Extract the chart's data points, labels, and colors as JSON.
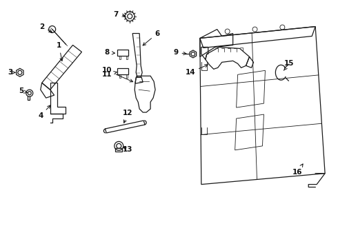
{
  "background_color": "#ffffff",
  "fig_width": 4.9,
  "fig_height": 3.6,
  "dpi": 100,
  "line_color": "#1a1a1a",
  "label_fontsize": 7.5
}
